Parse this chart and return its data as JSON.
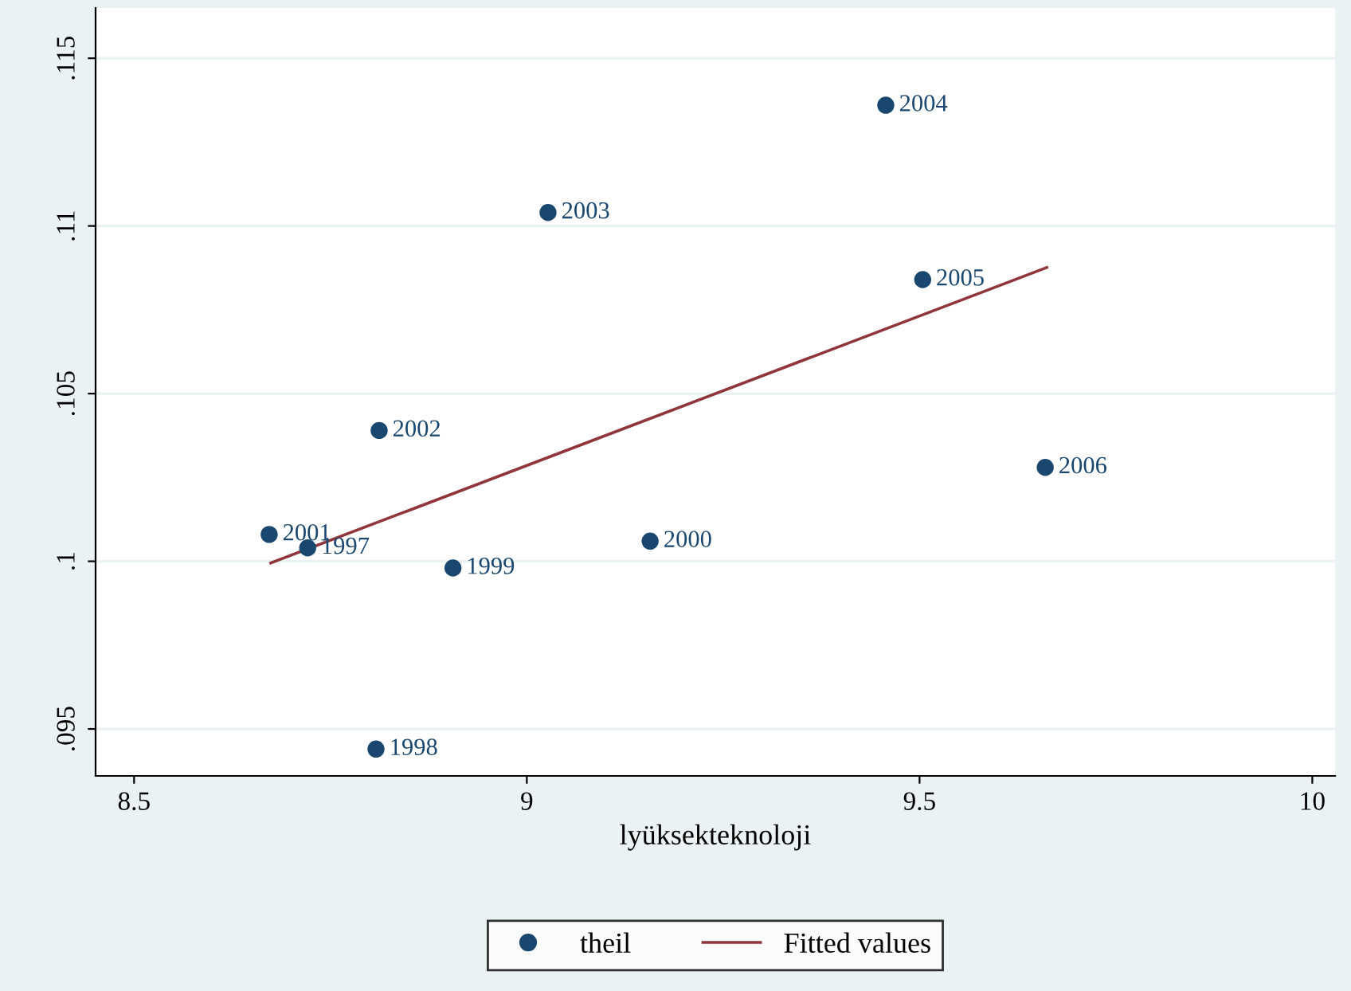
{
  "chart_data": {
    "type": "scatter",
    "xlabel": "lyüksekteknoloji",
    "xlim": [
      8.451,
      10.029
    ],
    "ylim": [
      0.0936,
      0.1165
    ],
    "xticks": [
      8.5,
      9,
      9.5,
      10
    ],
    "yticks": [
      {
        "value": 0.095,
        "label": ".095"
      },
      {
        "value": 0.1,
        "label": ".1"
      },
      {
        "value": 0.105,
        "label": ".105"
      },
      {
        "value": 0.11,
        "label": ".11"
      },
      {
        "value": 0.115,
        "label": ".115"
      }
    ],
    "grid": "y",
    "legend": "bottom",
    "series": [
      {
        "name": "theil",
        "marker": "circle",
        "color": "#1a476f",
        "x": [
          8.721,
          8.808,
          8.906,
          9.157,
          8.672,
          8.812,
          9.027,
          9.457,
          9.504,
          9.66
        ],
        "values": [
          0.1004,
          0.0944,
          0.0998,
          0.1006,
          0.1008,
          0.1039,
          0.1104,
          0.1136,
          0.1084,
          0.1028
        ]
      },
      {
        "name": "Fitted values",
        "type": "line",
        "color": "#90353b",
        "x": [
          8.674,
          9.662
        ],
        "values": [
          0.09995,
          0.10876
        ]
      }
    ],
    "annotations": [
      {
        "text": "1997",
        "x": 8.721,
        "y": 0.1004
      },
      {
        "text": "1998",
        "x": 8.808,
        "y": 0.0944
      },
      {
        "text": "1999",
        "x": 8.906,
        "y": 0.0998
      },
      {
        "text": "2000",
        "x": 9.157,
        "y": 0.1006
      },
      {
        "text": "2001",
        "x": 8.672,
        "y": 0.1008
      },
      {
        "text": "2002",
        "x": 8.812,
        "y": 0.1039
      },
      {
        "text": "2003",
        "x": 9.027,
        "y": 0.1104
      },
      {
        "text": "2004",
        "x": 9.457,
        "y": 0.1136
      },
      {
        "text": "2005",
        "x": 9.504,
        "y": 0.1084
      },
      {
        "text": "2006",
        "x": 9.66,
        "y": 0.1028
      }
    ]
  }
}
